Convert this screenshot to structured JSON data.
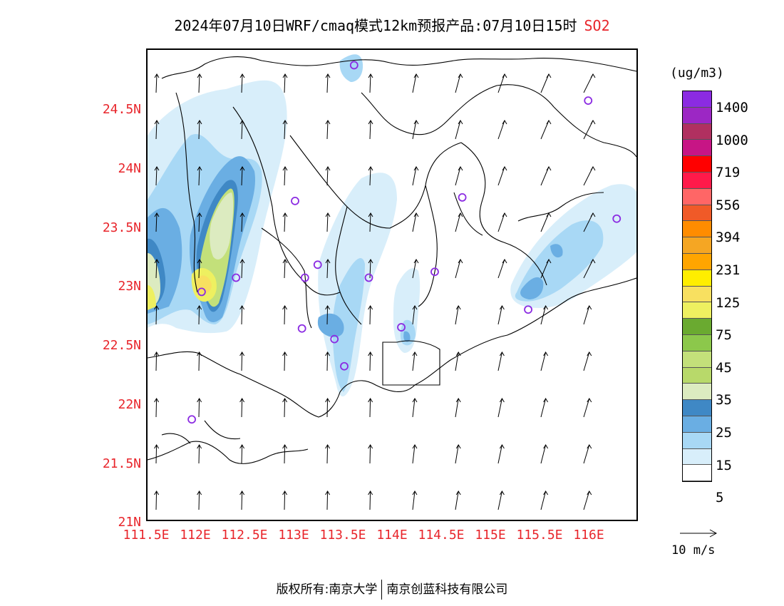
{
  "title": {
    "main": "2024年07月10日WRF/cmaq模式12km预报产品:07月10日15时",
    "species": "SO2"
  },
  "axes": {
    "lat_labels": [
      "24.5N",
      "24N",
      "23.5N",
      "23N",
      "22.5N",
      "22N",
      "21.5N",
      "21N"
    ],
    "lon_labels": [
      "111.5E",
      "112E",
      "112.5E",
      "113E",
      "113.5E",
      "114E",
      "114.5E",
      "115E",
      "115.5E",
      "116E"
    ]
  },
  "colorbar": {
    "unit": "(ug/m3)",
    "labels": [
      "1400",
      "1000",
      "719",
      "556",
      "394",
      "231",
      "125",
      "75",
      "45",
      "35",
      "25",
      "15",
      "5"
    ],
    "colors_top_to_bottom": [
      "#8b2be2",
      "#9c27c4",
      "#b03060",
      "#c71585",
      "#ff0000",
      "#ff1a4a",
      "#ff6666",
      "#f05a28",
      "#ff8c00",
      "#f5a623",
      "#ffa500",
      "#ffee00",
      "#f8e060",
      "#eef060",
      "#6aaa30",
      "#8cc84b",
      "#c3e07a",
      "#b8d96a",
      "#dcebc0",
      "#3f88c5",
      "#6aaee3",
      "#a8d8f5",
      "#d8eefa",
      "#ffffff"
    ],
    "species_color": "#e8252b"
  },
  "legend": {
    "reference_vector": "10 m/s"
  },
  "footer": {
    "left": "版权所有:南京大学",
    "right": "南京创蓝科技有限公司"
  },
  "stations": [
    {
      "lon": 113.6,
      "lat": 24.85
    },
    {
      "lon": 115.98,
      "lat": 24.55
    },
    {
      "lon": 113.0,
      "lat": 23.7
    },
    {
      "lon": 114.7,
      "lat": 23.73
    },
    {
      "lon": 116.27,
      "lat": 23.55
    },
    {
      "lon": 113.23,
      "lat": 23.16
    },
    {
      "lon": 112.4,
      "lat": 23.05
    },
    {
      "lon": 113.1,
      "lat": 23.05
    },
    {
      "lon": 113.75,
      "lat": 23.05
    },
    {
      "lon": 114.42,
      "lat": 23.1
    },
    {
      "lon": 112.05,
      "lat": 22.93
    },
    {
      "lon": 115.37,
      "lat": 22.78
    },
    {
      "lon": 113.07,
      "lat": 22.62
    },
    {
      "lon": 114.08,
      "lat": 22.63
    },
    {
      "lon": 113.4,
      "lat": 22.53
    },
    {
      "lon": 113.5,
      "lat": 22.3
    },
    {
      "lon": 111.95,
      "lat": 21.85
    }
  ]
}
